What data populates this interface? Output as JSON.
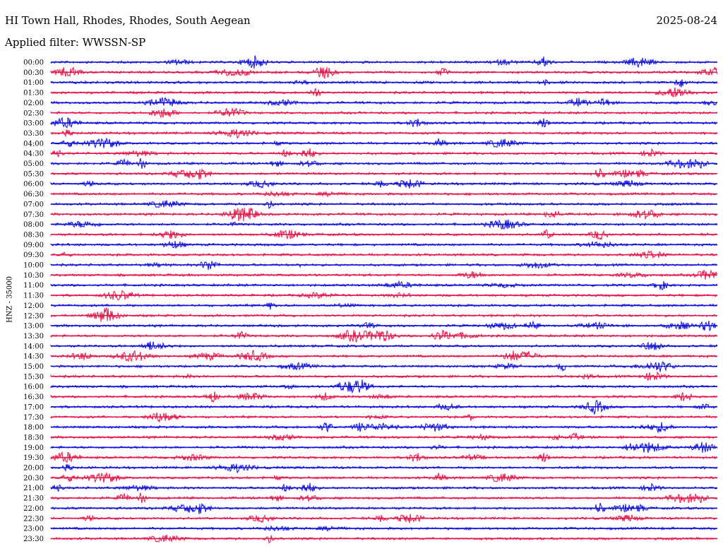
{
  "header": {
    "station": "HI Town Hall, Rhodes, Rhodes, South Aegean",
    "date": "2025-08-24",
    "filter": "Applied filter: WWSSN-SP",
    "channel": "HNZ - 35000"
  },
  "colors": {
    "blue": "#1010e0",
    "red": "#e8164a"
  },
  "chart_data": {
    "type": "line",
    "title": "HI Town Hall, Rhodes, Rhodes, South Aegean",
    "subtitle": "Applied filter: WWSSN-SP",
    "ylabel": "HNZ - 35000",
    "grid": false,
    "row_labels": [
      "00:00",
      "00:30",
      "01:00",
      "01:30",
      "02:00",
      "02:30",
      "03:00",
      "03:30",
      "04:00",
      "04:30",
      "05:00",
      "05:30",
      "06:00",
      "06:30",
      "07:00",
      "07:30",
      "08:00",
      "08:30",
      "09:00",
      "09:30",
      "10:00",
      "10:30",
      "11:00",
      "11:30",
      "12:00",
      "12:30",
      "13:00",
      "13:30",
      "14:00",
      "14:30",
      "15:00",
      "15:30",
      "16:00",
      "16:30",
      "17:00",
      "17:30",
      "18:00",
      "18:30",
      "19:00",
      "19:30",
      "20:00",
      "20:30",
      "21:00",
      "21:30",
      "22:00",
      "22:30",
      "23:00",
      "23:30"
    ],
    "row_colors": [
      "blue",
      "red",
      "blue",
      "red",
      "blue",
      "red",
      "blue",
      "red",
      "blue",
      "red",
      "blue",
      "red",
      "blue",
      "red",
      "blue",
      "red",
      "blue",
      "red",
      "blue",
      "red",
      "blue",
      "red",
      "blue",
      "red",
      "blue",
      "red",
      "blue",
      "red",
      "blue",
      "red",
      "blue",
      "red",
      "blue",
      "red",
      "blue",
      "red",
      "blue",
      "red",
      "blue",
      "red",
      "blue",
      "red",
      "blue",
      "red",
      "blue",
      "red",
      "blue",
      "red"
    ]
  }
}
